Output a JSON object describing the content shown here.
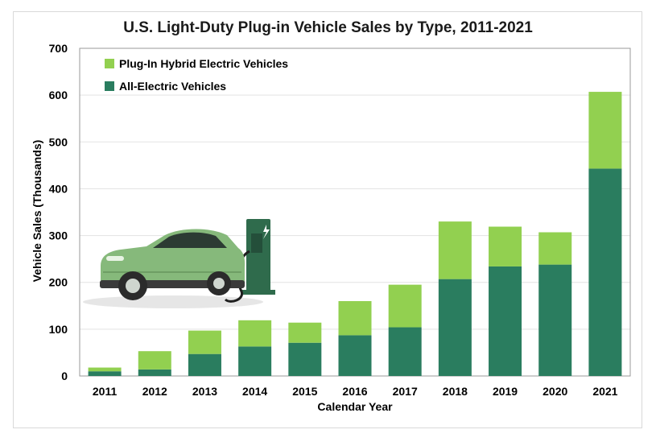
{
  "chart_data": {
    "type": "bar",
    "stacked": true,
    "title": "U.S. Light-Duty Plug-in Vehicle Sales by Type, 2011-2021",
    "xlabel": "Calendar Year",
    "ylabel": "Vehicle Sales (Thousands)",
    "ylim": [
      0,
      700
    ],
    "yticks": [
      0,
      100,
      200,
      300,
      400,
      500,
      600,
      700
    ],
    "grid": true,
    "legend_position": "top-left",
    "categories": [
      "2011",
      "2012",
      "2013",
      "2014",
      "2015",
      "2016",
      "2017",
      "2018",
      "2019",
      "2020",
      "2021"
    ],
    "series": [
      {
        "name": "All-Electric Vehicles",
        "color": "#2a7d5f",
        "values": [
          10,
          14,
          47,
          63,
          71,
          87,
          104,
          207,
          234,
          238,
          443
        ]
      },
      {
        "name": "Plug-In Hybrid Electric Vehicles",
        "color": "#92d050",
        "values": [
          8,
          39,
          50,
          56,
          43,
          73,
          91,
          123,
          85,
          69,
          164
        ]
      }
    ],
    "legend_order": [
      1,
      0
    ]
  },
  "colors": {
    "grid": "#e3e3e3",
    "axis": "#999999"
  },
  "illustration": {
    "icon": "electric-car-charging-icon"
  }
}
